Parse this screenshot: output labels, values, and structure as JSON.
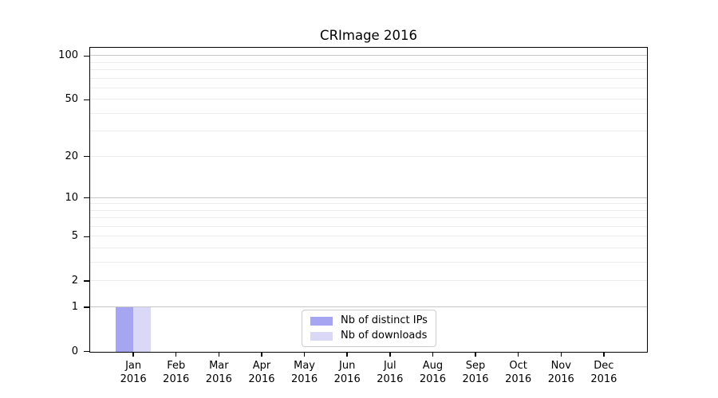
{
  "chart_data": {
    "type": "bar",
    "title": "CRImage 2016",
    "categories": [
      "Jan",
      "Feb",
      "Mar",
      "Apr",
      "May",
      "Jun",
      "Jul",
      "Aug",
      "Sep",
      "Oct",
      "Nov",
      "Dec"
    ],
    "category_year": "2016",
    "series": [
      {
        "name": "Nb of distinct IPs",
        "color": "#a5a5f2",
        "values": [
          1,
          0,
          0,
          0,
          0,
          0,
          0,
          0,
          0,
          0,
          0,
          0
        ]
      },
      {
        "name": "Nb of downloads",
        "color": "#d9d9f7",
        "values": [
          1,
          0,
          0,
          0,
          0,
          0,
          0,
          0,
          0,
          0,
          0,
          0
        ]
      }
    ],
    "xlabel": "",
    "ylabel": "",
    "ylim": [
      0,
      113
    ],
    "yaxis": {
      "scale": "log10(1+y)",
      "tick_values": [
        0,
        1,
        2,
        5,
        10,
        20,
        50,
        100
      ],
      "major_grid_values": [
        1,
        10,
        100
      ],
      "minor_grid_values": [
        2,
        3,
        4,
        5,
        6,
        7,
        8,
        9,
        20,
        30,
        40,
        50,
        60,
        70,
        80,
        90
      ]
    },
    "grid": true,
    "legend": {
      "position": "lower center"
    }
  },
  "colors": {
    "background": "#ffffff",
    "spine": "#000000",
    "major_grid": "#c6c6c6",
    "minor_grid": "#ececec",
    "legend_border": "#cccccc",
    "text": "#000000"
  }
}
